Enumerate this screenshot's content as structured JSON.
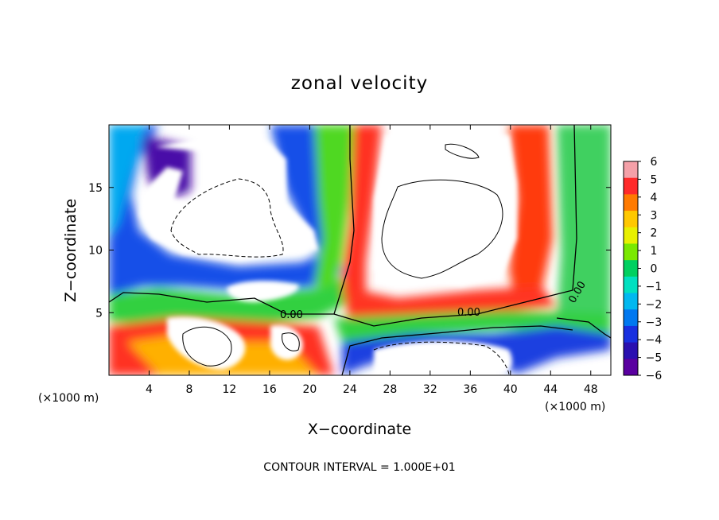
{
  "chart_data": {
    "type": "heatmap",
    "title": "zonal velocity",
    "xlabel": "X−coordinate",
    "ylabel": "Z−coordinate",
    "x_unit_left": "(×1000 m)",
    "x_unit_right": "(×1000 m)",
    "xlim": [
      0,
      50
    ],
    "ylim": [
      0,
      20
    ],
    "xticks": [
      4,
      8,
      12,
      16,
      20,
      24,
      28,
      32,
      36,
      40,
      44,
      48
    ],
    "yticks": [
      5,
      10,
      15
    ],
    "colorbar": {
      "ticks": [
        6,
        5,
        4,
        3,
        2,
        1,
        0,
        -1,
        -2,
        -3,
        -4,
        -5,
        -6
      ],
      "tick_labels": [
        "6",
        "5",
        "4",
        "3",
        "2",
        "1",
        "0",
        "−1",
        "−2",
        "−3",
        "−4",
        "−5",
        "−6"
      ],
      "colors": [
        "#f4a0a8",
        "#ff2a2a",
        "#ff7a00",
        "#ffc800",
        "#e8f000",
        "#7ae800",
        "#00d060",
        "#00e0c0",
        "#00b8f0",
        "#0078f0",
        "#1830e0",
        "#2a10b0",
        "#5a00a0"
      ]
    },
    "contour_labels": [
      "0.00",
      "0.00",
      "0.00"
    ],
    "contour_interval_text": "CONTOUR INTERVAL = 1.000E+01",
    "note": ""
  }
}
